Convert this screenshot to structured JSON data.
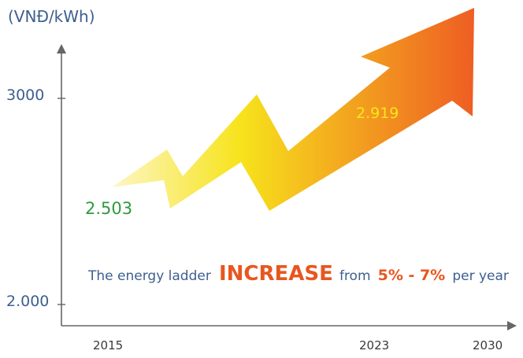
{
  "chart_data": {
    "type": "line",
    "unit_label": "(VNĐ/kWh)",
    "x_ticks": [
      "2015",
      "2023",
      "2030"
    ],
    "y_ticks": [
      "3000",
      "2.000"
    ],
    "points": [
      {
        "x": "2015",
        "label": "2.503"
      },
      {
        "x": "2023",
        "label": "2.919"
      }
    ],
    "annotation": {
      "prefix": "The energy ladder",
      "emphasis": "INCREASE",
      "middle": "from",
      "range": "5% - 7%",
      "suffix": "per year"
    },
    "colors": {
      "arrow_start": "#fdf7c6",
      "arrow_mid": "#f7e31c",
      "arrow_end": "#ee5a23"
    },
    "grid": false
  }
}
